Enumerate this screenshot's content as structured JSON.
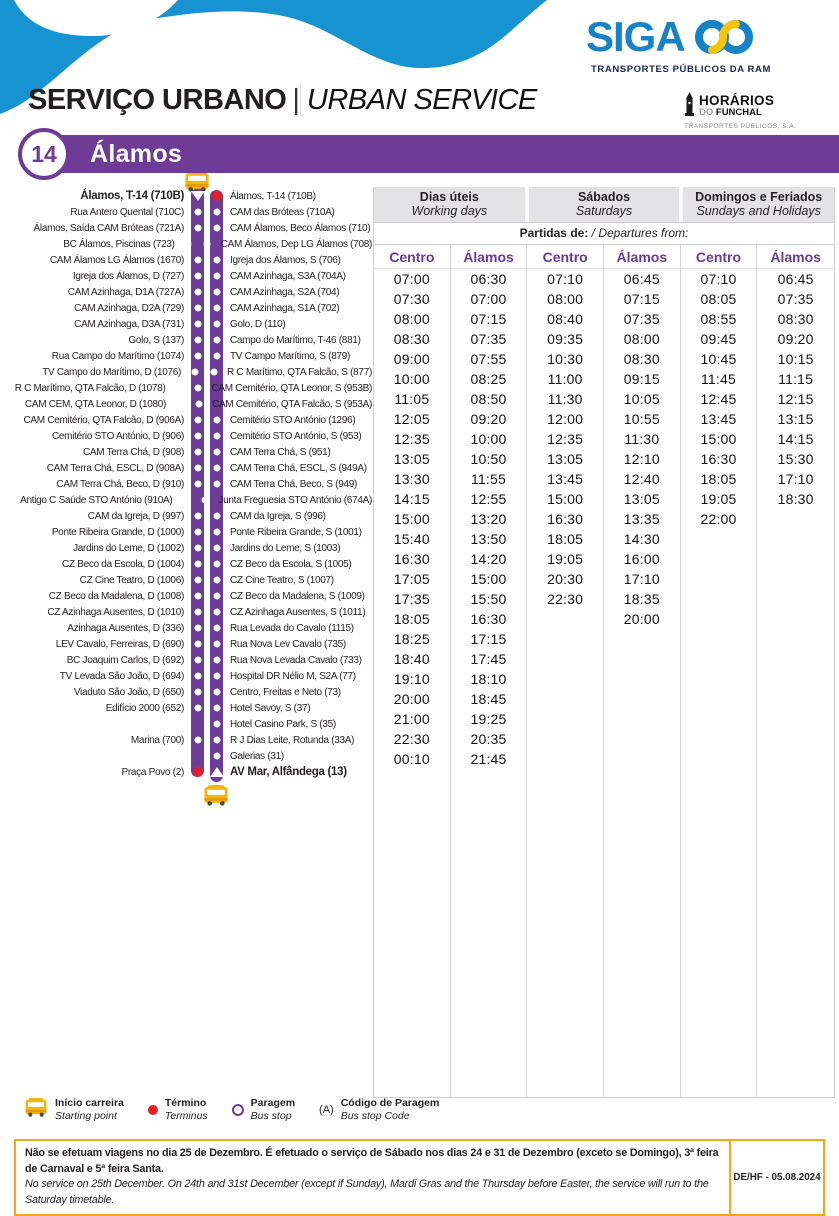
{
  "header": {
    "siga": "SIGA",
    "siga_tagline": "TRANSPORTES PÚBLICOS DA RAM",
    "service_title_pt": "SERVIÇO URBANO",
    "service_divider": "|",
    "service_title_en": "URBAN SERVICE",
    "hf_line1": "HORÁRIOS",
    "hf_line2_pre": "DO ",
    "hf_line2": "FUNCHAL",
    "hf_line3": "TRANSPORTES PÚBLICOS, S.A.",
    "route_number": "14",
    "route_name": "Álamos"
  },
  "colors": {
    "purple": "#6e3c96",
    "wave_blue": "#1793d2",
    "siga_blue": "#1583c5",
    "siga_yellow": "#f7c40c",
    "terminus_red": "#e61e28",
    "bus_yellow": "#f6b40e",
    "footer_orange": "#f7a61b",
    "header_gray": "#e3e3e5"
  },
  "route_map": {
    "rows": [
      {
        "l": "Álamos, T-14 (710B)",
        "r": "Álamos, T-14 (710B)",
        "lm": "a",
        "rm": "t",
        "lb": 1,
        "rb": 0
      },
      {
        "l": "Rua Antero Quental (710C)",
        "r": "CAM das Bróteas (710A)",
        "lm": "s",
        "rm": "s",
        "lb": 0,
        "rb": 0
      },
      {
        "l": "Álamos, Saída CAM Bróteas (721A)",
        "r": "CAM Álamos, Beco Álamos (710)",
        "lm": "s",
        "rm": "s",
        "lb": 0,
        "rb": 0
      },
      {
        "l": "BC Álamos, Piscinas (723)",
        "r": "CAM Álamos, Dep LG Álamos (708)",
        "lm": "s",
        "rm": "s",
        "lb": 0,
        "rb": 0
      },
      {
        "l": "CAM Álamos LG Álamos (1670)",
        "r": "Igreja dos Álamos, S (706)",
        "lm": "s",
        "rm": "s",
        "lb": 0,
        "rb": 0
      },
      {
        "l": "Igreja dos Álamos, D (727)",
        "r": "CAM Azinhaga, S3A (704A)",
        "lm": "s",
        "rm": "s",
        "lb": 0,
        "rb": 0
      },
      {
        "l": "CAM Azinhaga, D1A (727A)",
        "r": "CAM Azinhaga, S2A (704)",
        "lm": "s",
        "rm": "s",
        "lb": 0,
        "rb": 0
      },
      {
        "l": "CAM Azinhaga, D2A (729)",
        "r": "CAM Azinhaga, S1A (702)",
        "lm": "s",
        "rm": "s",
        "lb": 0,
        "rb": 0
      },
      {
        "l": "CAM Azinhaga, D3A (731)",
        "r": "Golo, D (110)",
        "lm": "s",
        "rm": "s",
        "lb": 0,
        "rb": 0
      },
      {
        "l": "Golo, S (137)",
        "r": "Campo do Marítimo, T-46 (881)",
        "lm": "s",
        "rm": "s",
        "lb": 0,
        "rb": 0
      },
      {
        "l": "Rua Campo do Marítimo (1074)",
        "r": "TV Campo Marítimo, S (879)",
        "lm": "s",
        "rm": "s",
        "lb": 0,
        "rb": 0
      },
      {
        "l": "TV Campo do Marítimo, D (1076)",
        "r": "R C Marítimo, QTA Falcão, S (877)",
        "lm": "s",
        "rm": "s",
        "lb": 0,
        "rb": 0
      },
      {
        "l": "R C Marítimo, QTA Falcão, D (1078)",
        "r": "CAM Cemitério, QTA Leonor, S (953B)",
        "lm": "s",
        "rm": "s",
        "lb": 0,
        "rb": 0
      },
      {
        "l": "CAM CEM, QTA Leonor, D (1080)",
        "r": "CAM Cemitério, QTA Falcão, S (953A)",
        "lm": "s",
        "rm": "s",
        "lb": 0,
        "rb": 0
      },
      {
        "l": "CAM Cemitério, QTA Falcão, D (906A)",
        "r": "Cemitério STO António (1296)",
        "lm": "s",
        "rm": "s",
        "lb": 0,
        "rb": 0
      },
      {
        "l": "Cemitério STO António, D (906)",
        "r": "Cemitério STO António, S (953)",
        "lm": "s",
        "rm": "s",
        "lb": 0,
        "rb": 0
      },
      {
        "l": "CAM Terra Chá, D (908)",
        "r": "CAM Terra Chá, S (951)",
        "lm": "s",
        "rm": "s",
        "lb": 0,
        "rb": 0
      },
      {
        "l": "CAM Terra Chá, ESCL, D (908A)",
        "r": "CAM Terra Chá, ESCL, S (949A)",
        "lm": "s",
        "rm": "s",
        "lb": 0,
        "rb": 0
      },
      {
        "l": "CAM Terra Chá, Beco, D (910)",
        "r": "CAM Terra Chá, Beco, S (949)",
        "lm": "s",
        "rm": "s",
        "lb": 0,
        "rb": 0
      },
      {
        "l": "Antigo C Saúde STO António (910A)",
        "r": "Junta Freguesia STO António (674A)",
        "lm": "s",
        "rm": "s",
        "lb": 0,
        "rb": 0
      },
      {
        "l": "CAM da Igreja, D (997)",
        "r": "CAM da Igreja, S (996)",
        "lm": "s",
        "rm": "s",
        "lb": 0,
        "rb": 0
      },
      {
        "l": "Ponte Ribeira Grande, D (1000)",
        "r": "Ponte Ribeira Grande, S (1001)",
        "lm": "s",
        "rm": "s",
        "lb": 0,
        "rb": 0
      },
      {
        "l": "Jardins do Leme, D (1002)",
        "r": "Jardins do Leme, S (1003)",
        "lm": "s",
        "rm": "s",
        "lb": 0,
        "rb": 0
      },
      {
        "l": "CZ Beco da Escola, D (1004)",
        "r": "CZ Beco da Escola, S (1005)",
        "lm": "s",
        "rm": "s",
        "lb": 0,
        "rb": 0
      },
      {
        "l": "CZ Cine Teatro, D (1006)",
        "r": "CZ Cine Teatro, S (1007)",
        "lm": "s",
        "rm": "s",
        "lb": 0,
        "rb": 0
      },
      {
        "l": "CZ Beco da Madalena, D (1008)",
        "r": "CZ Beco da Madalena, S (1009)",
        "lm": "s",
        "rm": "s",
        "lb": 0,
        "rb": 0
      },
      {
        "l": "CZ Azinhaga Ausentes, D (1010)",
        "r": "CZ Azinhaga Ausentes, S (1011)",
        "lm": "s",
        "rm": "s",
        "lb": 0,
        "rb": 0
      },
      {
        "l": "Azinhaga Ausentes, D (336)",
        "r": "Rua Levada do Cavalo (1115)",
        "lm": "s",
        "rm": "s",
        "lb": 0,
        "rb": 0
      },
      {
        "l": "LEV Cavalo, Ferreiras, D (690)",
        "r": "Rua Nova Lev Cavalo (735)",
        "lm": "s",
        "rm": "s",
        "lb": 0,
        "rb": 0
      },
      {
        "l": "BC Joaquim Carlos, D (692)",
        "r": "Rua Nova Levada Cavalo (733)",
        "lm": "s",
        "rm": "s",
        "lb": 0,
        "rb": 0
      },
      {
        "l": "TV Levada São João, D (694)",
        "r": "Hospital DR Nélio M, S2A (77)",
        "lm": "s",
        "rm": "s",
        "lb": 0,
        "rb": 0
      },
      {
        "l": "Viaduto São João, D (650)",
        "r": "Centro, Freitas e Neto (73)",
        "lm": "s",
        "rm": "s",
        "lb": 0,
        "rb": 0
      },
      {
        "l": "Edifício 2000 (652)",
        "r": "Hotel Savoy, S (37)",
        "lm": "s",
        "rm": "s",
        "lb": 0,
        "rb": 0
      },
      {
        "l": "",
        "r": "Hotel Casino Park, S (35)",
        "lm": "n",
        "rm": "s",
        "lb": 0,
        "rb": 0
      },
      {
        "l": "Marina (700)",
        "r": "R J Dias Leite, Rotunda (33A)",
        "lm": "s",
        "rm": "s",
        "lb": 0,
        "rb": 0
      },
      {
        "l": "",
        "r": "Galerias (31)",
        "lm": "n",
        "rm": "s",
        "lb": 0,
        "rb": 0
      },
      {
        "l": "Praça Povo (2)",
        "r": "AV Mar, Alfândega (13)",
        "lm": "t",
        "rm": "a",
        "lb": 0,
        "rb": 1
      }
    ]
  },
  "timetable": {
    "day_groups": [
      {
        "pt": "Dias úteis",
        "en": "Working days"
      },
      {
        "pt": "Sábados",
        "en": "Saturdays"
      },
      {
        "pt": "Domingos e Feriados",
        "en": "Sundays and Holidays"
      }
    ],
    "departures_pt": "Partidas de:",
    "departures_en": " / Departures from:",
    "column_headers": [
      "Centro",
      "Álamos",
      "Centro",
      "Álamos",
      "Centro",
      "Álamos"
    ],
    "columns": [
      [
        "07:00",
        "07:30",
        "08:00",
        "08:30",
        "09:00",
        "10:00",
        "11:05",
        "12:05",
        "12:35",
        "13:05",
        "13:30",
        "14:15",
        "15:00",
        "15:40",
        "16:30",
        "17:05",
        "17:35",
        "18:05",
        "18:25",
        "18:40",
        "19:10",
        "20:00",
        "21:00",
        "22:30",
        "00:10"
      ],
      [
        "06:30",
        "07:00",
        "07:15",
        "07:35",
        "07:55",
        "08:25",
        "08:50",
        "09:20",
        "10:00",
        "10:50",
        "11:55",
        "12:55",
        "13:20",
        "13:50",
        "14:20",
        "15:00",
        "15:50",
        "16:30",
        "17:15",
        "17:45",
        "18:10",
        "18:45",
        "19:25",
        "20:35",
        "21:45"
      ],
      [
        "07:10",
        "08:00",
        "08:40",
        "09:35",
        "10:30",
        "11:00",
        "11:30",
        "12:00",
        "12:35",
        "13:05",
        "13:45",
        "15:00",
        "16:30",
        "18:05",
        "19:05",
        "20:30",
        "22:30"
      ],
      [
        "06:45",
        "07:15",
        "07:35",
        "08:00",
        "08:30",
        "09:15",
        "10:05",
        "10:55",
        "11:30",
        "12:10",
        "12:40",
        "13:05",
        "13:35",
        "14:30",
        "16:00",
        "17:10",
        "18:35",
        "20:00"
      ],
      [
        "07:10",
        "08:05",
        "08:55",
        "09:45",
        "10:45",
        "11:45",
        "12:45",
        "13:45",
        "15:00",
        "16:30",
        "18:05",
        "19:05",
        "22:00"
      ],
      [
        "06:45",
        "07:35",
        "08:30",
        "09:20",
        "10:15",
        "11:15",
        "12:15",
        "13:15",
        "14:15",
        "15:30",
        "17:10",
        "18:30"
      ]
    ]
  },
  "legend": {
    "items": [
      {
        "type": "bus",
        "pt": "Início carreira",
        "en": "Starting point"
      },
      {
        "type": "terminus",
        "pt": "Término",
        "en": "Terminus"
      },
      {
        "type": "stop",
        "pt": "Paragem",
        "en": "Bus stop"
      },
      {
        "type": "code",
        "symbol": "(A)",
        "pt": "Código de Paragem",
        "en": "Bus stop Code"
      }
    ]
  },
  "footer": {
    "note_pt": "Não se efetuam viagens no dia 25 de Dezembro. É efetuado o serviço de Sábado nos dias 24 e 31 de Dezembro (exceto se Domingo), 3ª feira de Carnaval e 5ª feira Santa.",
    "note_en": "No service on 25th December. On 24th and 31st December (except if Sunday), Mardi Gras and the Thursday before Easter, the service will run to the Saturday timetable.",
    "code": "DE/HF - 05.08.2024"
  }
}
